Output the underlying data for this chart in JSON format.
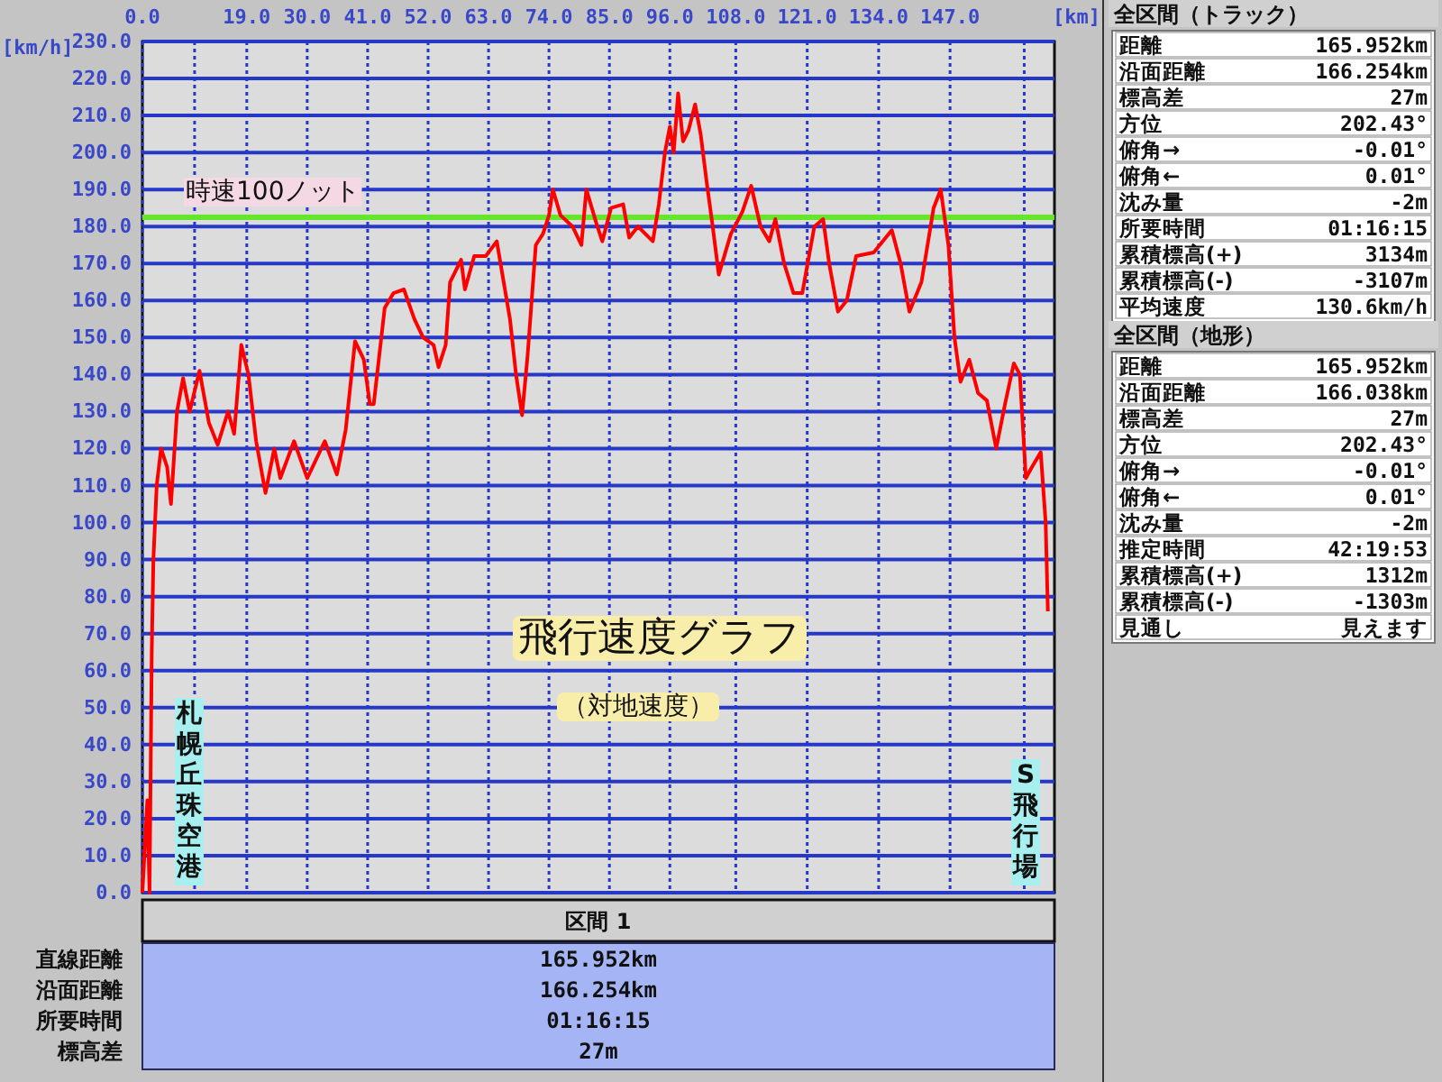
{
  "chart_data": [
    {
      "type": "line",
      "title": "飛行速度グラフ",
      "subtitle": "（対地速度）",
      "xlabel": "[km]",
      "ylabel": "[km/h]",
      "color": "#ff0000",
      "grid": true,
      "x": [
        0.0,
        0.9,
        1.3,
        1.7,
        2.0,
        2.6,
        3.4,
        4.5,
        5.2,
        6.3,
        7.4,
        8.6,
        10.4,
        12.1,
        13.7,
        15.6,
        16.7,
        18.0,
        19.3,
        20.7,
        22.4,
        24.0,
        25.1,
        27.6,
        30.0,
        33.2,
        35.4,
        37.0,
        38.7,
        40.3,
        41.4,
        42.1,
        44.1,
        45.7,
        47.6,
        49.5,
        51.1,
        53.0,
        53.9,
        55.2,
        56.0,
        58.0,
        58.7,
        60.4,
        62.5,
        64.5,
        66.9,
        68.0,
        69.1,
        70.1,
        71.6,
        72.9,
        74.0,
        74.7,
        76.1,
        78.3,
        79.9,
        80.8,
        82.6,
        83.7,
        85.3,
        87.5,
        88.6,
        90.2,
        92.9,
        94.0,
        95.1,
        96.0,
        96.7,
        97.5,
        98.4,
        99.4,
        100.6,
        101.6,
        102.7,
        103.8,
        104.9,
        107.1,
        109.2,
        110.8,
        112.5,
        114.1,
        115.2,
        116.8,
        118.5,
        120.1,
        122.3,
        123.9,
        125.0,
        126.6,
        128.2,
        129.9,
        133.1,
        136.4,
        138.0,
        139.6,
        141.8,
        144.0,
        145.3,
        146.7,
        147.8,
        148.9,
        150.5,
        152.1,
        153.7,
        155.4,
        157.0,
        158.6,
        159.7,
        160.8,
        161.9,
        163.5,
        164.4,
        164.8
      ],
      "values": [
        0,
        25,
        0,
        65,
        90,
        110,
        120,
        115,
        105,
        130,
        139,
        130,
        141,
        127,
        121,
        130,
        124,
        148,
        140,
        122,
        108,
        120,
        112,
        122,
        112,
        122,
        113,
        125,
        149,
        144,
        132,
        132,
        158,
        162,
        163,
        155,
        150,
        148,
        142,
        148,
        165,
        171,
        163,
        172,
        172,
        176,
        155,
        140,
        129,
        145,
        175,
        178,
        183,
        190,
        183,
        180,
        175,
        190,
        181,
        176,
        185,
        186,
        177,
        180,
        176,
        186,
        200,
        207,
        200,
        216,
        203,
        206,
        213,
        205,
        192,
        180,
        167,
        178,
        184,
        191,
        180,
        176,
        182,
        170,
        162,
        162,
        180,
        182,
        170,
        157,
        160,
        172,
        173,
        179,
        170,
        157,
        165,
        185,
        190,
        175,
        150,
        138,
        144,
        135,
        133,
        120,
        132,
        143,
        140,
        112,
        115,
        119,
        100,
        76
      ],
      "xlim": [
        0,
        166
      ],
      "xticks": [
        {
          "value": 0,
          "label": "0.0"
        },
        {
          "value": 9.5,
          "label": null
        },
        {
          "value": 19,
          "label": "19.0"
        },
        {
          "value": 30,
          "label": "30.0"
        },
        {
          "value": 41,
          "label": "41.0"
        },
        {
          "value": 52,
          "label": "52.0"
        },
        {
          "value": 63,
          "label": "63.0"
        },
        {
          "value": 74,
          "label": "74.0"
        },
        {
          "value": 85,
          "label": "85.0"
        },
        {
          "value": 96,
          "label": "96.0"
        },
        {
          "value": 108,
          "label": "108.0"
        },
        {
          "value": 121,
          "label": "121.0"
        },
        {
          "value": 134,
          "label": "134.0"
        },
        {
          "value": 147,
          "label": "147.0"
        },
        {
          "value": 160.5,
          "label": null
        }
      ],
      "ylim": [
        0,
        230
      ],
      "yticks": [
        {
          "value": 0,
          "label": "0.0"
        },
        {
          "value": 10,
          "label": "10.0"
        },
        {
          "value": 20,
          "label": "20.0"
        },
        {
          "value": 30,
          "label": "30.0"
        },
        {
          "value": 40,
          "label": "40.0"
        },
        {
          "value": 50,
          "label": "50.0"
        },
        {
          "value": 60,
          "label": "60.0"
        },
        {
          "value": 70,
          "label": "70.0"
        },
        {
          "value": 80,
          "label": "80.0"
        },
        {
          "value": 90,
          "label": "90.0"
        },
        {
          "value": 100,
          "label": "100.0"
        },
        {
          "value": 110,
          "label": "110.0"
        },
        {
          "value": 120,
          "label": "120.0"
        },
        {
          "value": 130,
          "label": "130.0"
        },
        {
          "value": 140,
          "label": "140.0"
        },
        {
          "value": 150,
          "label": "150.0"
        },
        {
          "value": 160,
          "label": "160.0"
        },
        {
          "value": 170,
          "label": "170.0"
        },
        {
          "value": 180,
          "label": "180.0"
        },
        {
          "value": 190,
          "label": "190.0"
        },
        {
          "value": 200,
          "label": "200.0"
        },
        {
          "value": 210,
          "label": "210.0"
        },
        {
          "value": 220,
          "label": "220.0"
        },
        {
          "value": 230,
          "label": "230.0"
        }
      ],
      "ref_lines": [
        {
          "axis": "y",
          "value": 182.5,
          "label": "時速100ノット",
          "color": "#66e62a"
        }
      ],
      "annotations": [
        "札幌丘珠空港",
        "S飛行場"
      ]
    },
    {
      "type": "other",
      "title": "全区間（トラック）",
      "annotations": [
        "距離",
        "165.952km",
        "沿面距離",
        "166.254km",
        "標高差",
        "27m",
        "方位",
        "202.43°",
        "俯角→",
        "-0.01°",
        "俯角←",
        "0.01°",
        "沈み量",
        "-2m",
        "所要時間",
        "01:16:15",
        "累積標高(+)",
        "3134m",
        "累積標高(-)",
        "-3107m",
        "平均速度",
        "130.6km/h"
      ]
    },
    {
      "type": "other",
      "title": "全区間（地形）",
      "annotations": [
        "距離",
        "165.952km",
        "沿面距離",
        "166.038km",
        "標高差",
        "27m",
        "方位",
        "202.43°",
        "俯角→",
        "-0.01°",
        "俯角←",
        "0.01°",
        "沈み量",
        "-2m",
        "推定時間",
        "42:19:53",
        "累積標高(+)",
        "1312m",
        "累積標高(-)",
        "-1303m",
        "見通し",
        "見えます"
      ]
    },
    {
      "type": "other",
      "title": "区間 1",
      "annotations": [
        "直線距離",
        "165.952km",
        "沿面距離",
        "166.254km",
        "所要時間",
        "01:16:15",
        "標高差",
        "27m"
      ]
    }
  ]
}
